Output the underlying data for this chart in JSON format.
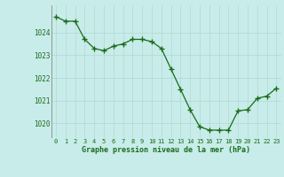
{
  "x": [
    0,
    1,
    2,
    3,
    4,
    5,
    6,
    7,
    8,
    9,
    10,
    11,
    12,
    13,
    14,
    15,
    16,
    17,
    18,
    19,
    20,
    21,
    22,
    23
  ],
  "y": [
    1024.7,
    1024.5,
    1024.5,
    1023.7,
    1023.3,
    1023.2,
    1023.4,
    1023.5,
    1023.7,
    1023.7,
    1023.6,
    1023.3,
    1022.4,
    1021.5,
    1020.6,
    1019.85,
    1019.7,
    1019.7,
    1019.7,
    1020.55,
    1020.6,
    1021.1,
    1021.2,
    1021.55
  ],
  "line_color": "#1a6b1a",
  "marker_color": "#1a6b1a",
  "bg_color": "#c8ece9",
  "grid_color": "#b0d8d4",
  "title": "Graphe pression niveau de la mer (hPa)",
  "title_color": "#1a6b1a",
  "xlabel_ticks": [
    "0",
    "1",
    "2",
    "3",
    "4",
    "5",
    "6",
    "7",
    "8",
    "9",
    "10",
    "11",
    "12",
    "13",
    "14",
    "15",
    "16",
    "17",
    "18",
    "19",
    "20",
    "21",
    "22",
    "23"
  ],
  "yticks": [
    1020,
    1021,
    1022,
    1023,
    1024
  ],
  "ylim": [
    1019.35,
    1025.2
  ],
  "xlim": [
    -0.5,
    23.5
  ]
}
